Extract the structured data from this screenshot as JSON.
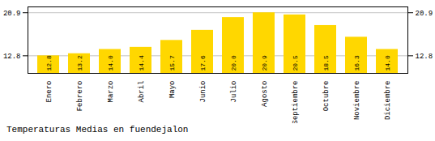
{
  "chart_data": {
    "type": "bar",
    "title": "Temperaturas Medias en fuendejalon",
    "categories": [
      "Enero",
      "Febrero",
      "Marzo",
      "Abril",
      "Mayo",
      "Junio",
      "Julio",
      "Agosto",
      "Septiembre",
      "Octubre",
      "Noviembre",
      "Diciembre"
    ],
    "values": [
      12.8,
      13.2,
      14.0,
      14.4,
      15.7,
      17.6,
      20.0,
      20.9,
      20.5,
      18.5,
      16.3,
      14.0
    ],
    "value_labels": [
      "12.8",
      "13.2",
      "14.0",
      "14.4",
      "15.7",
      "17.6",
      "20.0",
      "20.9",
      "20.5",
      "18.5",
      "16.3",
      "14.0"
    ],
    "color": "#FFD700",
    "ylim": [
      9.5,
      22.0
    ],
    "yticks": [
      12.8,
      20.9
    ],
    "grid": true,
    "data_labels": true
  }
}
